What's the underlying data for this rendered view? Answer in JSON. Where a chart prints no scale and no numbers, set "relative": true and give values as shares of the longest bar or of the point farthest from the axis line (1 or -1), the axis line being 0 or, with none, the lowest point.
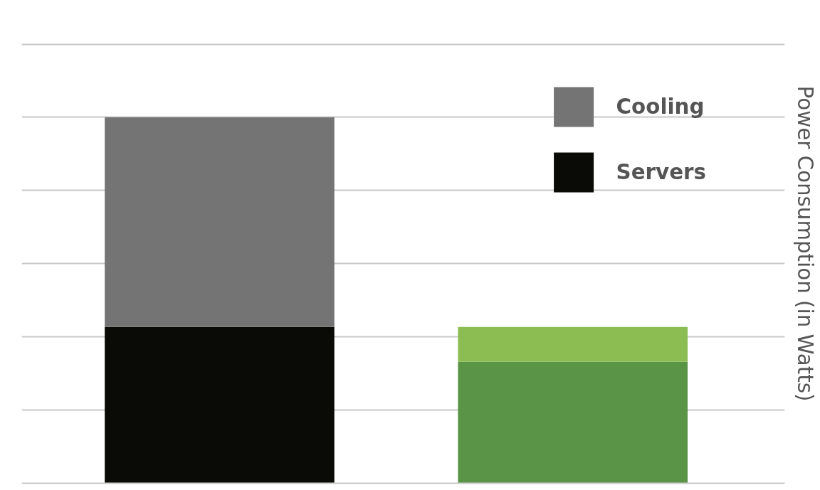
{
  "chart_data": {
    "type": "bar",
    "stacked": true,
    "relative": true,
    "categories": [
      null,
      null
    ],
    "ylabel": "Power Consumption (in Watts)",
    "series": [
      {
        "name": "Servers",
        "colors": [
          "#0a0a07",
          "#5a9446"
        ],
        "values": [
          0.427,
          0.332
        ]
      },
      {
        "name": "Cooling",
        "colors": [
          "#747474",
          "#8bbd52"
        ],
        "values": [
          0.573,
          0.095
        ]
      }
    ],
    "grid": "y",
    "legend": "top right"
  }
}
